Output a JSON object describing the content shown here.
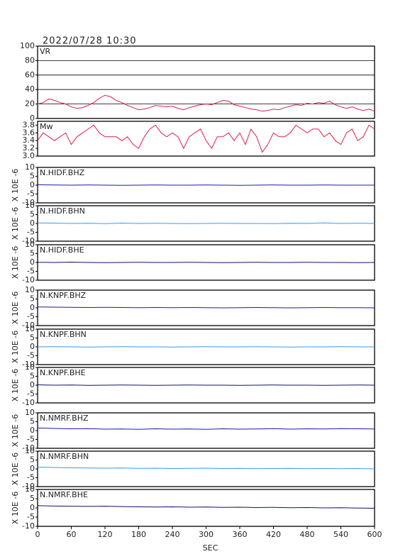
{
  "header": {
    "title": "2022/07/28 10:30"
  },
  "chart_data": [
    {
      "type": "line",
      "xlim": [
        0,
        600
      ],
      "ylim": [
        0,
        100
      ],
      "yticks": [
        0,
        20,
        40,
        60,
        80,
        100
      ],
      "grid": true,
      "x": [
        0,
        10,
        20,
        30,
        40,
        50,
        60,
        70,
        80,
        90,
        100,
        110,
        120,
        130,
        140,
        150,
        160,
        170,
        180,
        190,
        200,
        210,
        220,
        230,
        240,
        250,
        260,
        270,
        280,
        290,
        300,
        310,
        320,
        330,
        340,
        350,
        360,
        370,
        380,
        390,
        400,
        410,
        420,
        430,
        440,
        450,
        460,
        470,
        480,
        490,
        500,
        510,
        520,
        530,
        540,
        550,
        560,
        570,
        580,
        590,
        600
      ],
      "series": [
        {
          "name": "VR",
          "color": "#e0204a",
          "values": [
            20,
            22,
            27,
            25,
            22,
            20,
            16,
            14,
            15,
            18,
            22,
            28,
            32,
            30,
            25,
            22,
            18,
            15,
            12,
            13,
            15,
            18,
            17,
            16,
            17,
            14,
            12,
            15,
            17,
            19,
            20,
            19,
            22,
            25,
            24,
            19,
            17,
            15,
            13,
            12,
            10,
            11,
            13,
            12,
            15,
            17,
            19,
            18,
            21,
            20,
            22,
            21,
            24,
            19,
            16,
            14,
            16,
            13,
            11,
            13,
            10
          ]
        }
      ]
    },
    {
      "type": "line",
      "xlim": [
        0,
        600
      ],
      "ylim": [
        3.0,
        3.9
      ],
      "yticks": [
        {
          "value": 3,
          "label": "3.0"
        },
        3.2,
        3.4,
        3.6,
        3.8
      ],
      "grid": false,
      "x": [
        0,
        10,
        20,
        30,
        40,
        50,
        60,
        70,
        80,
        90,
        100,
        110,
        120,
        130,
        140,
        150,
        160,
        170,
        180,
        190,
        200,
        210,
        220,
        230,
        240,
        250,
        260,
        270,
        280,
        290,
        300,
        310,
        320,
        330,
        340,
        350,
        360,
        370,
        380,
        390,
        400,
        410,
        420,
        430,
        440,
        450,
        460,
        470,
        480,
        490,
        500,
        510,
        520,
        530,
        540,
        550,
        560,
        570,
        580,
        590,
        600
      ],
      "series": [
        {
          "name": "Mw",
          "color": "#e0204a",
          "values": [
            3.4,
            3.6,
            3.5,
            3.4,
            3.5,
            3.6,
            3.3,
            3.5,
            3.6,
            3.7,
            3.8,
            3.6,
            3.5,
            3.5,
            3.5,
            3.4,
            3.5,
            3.3,
            3.2,
            3.5,
            3.7,
            3.8,
            3.6,
            3.5,
            3.6,
            3.5,
            3.2,
            3.5,
            3.6,
            3.7,
            3.4,
            3.2,
            3.5,
            3.5,
            3.6,
            3.4,
            3.6,
            3.3,
            3.7,
            3.5,
            3.1,
            3.3,
            3.6,
            3.5,
            3.5,
            3.6,
            3.8,
            3.7,
            3.6,
            3.7,
            3.7,
            3.5,
            3.6,
            3.4,
            3.3,
            3.6,
            3.7,
            3.4,
            3.5,
            3.8,
            3.7
          ]
        }
      ]
    },
    {
      "type": "line",
      "ylabel": "X 10E -6",
      "xlim": [
        0,
        600
      ],
      "ylim": [
        -10,
        10
      ],
      "yticks": [
        -10,
        -5,
        0,
        5,
        10
      ],
      "x": [
        0,
        30,
        60,
        90,
        120,
        150,
        180,
        210,
        240,
        270,
        300,
        330,
        360,
        390,
        420,
        450,
        480,
        510,
        540,
        570,
        600
      ],
      "series": [
        {
          "name": "N.HIDF.BHZ",
          "color": "#1a1ab0",
          "values": [
            0.2,
            0.1,
            0,
            0.1,
            0,
            -0.1,
            0,
            0.1,
            0,
            0,
            0.1,
            0,
            -0.1,
            0,
            0.1,
            0,
            0,
            0.1,
            0,
            0,
            0
          ]
        }
      ]
    },
    {
      "type": "line",
      "ylabel": "X 10E -6",
      "xlim": [
        0,
        600
      ],
      "ylim": [
        -10,
        10
      ],
      "yticks": [
        -10,
        -5,
        0,
        5,
        10
      ],
      "x": [
        0,
        30,
        60,
        90,
        120,
        150,
        180,
        210,
        240,
        270,
        300,
        330,
        360,
        390,
        420,
        450,
        480,
        510,
        540,
        570,
        600
      ],
      "series": [
        {
          "name": "N.HIDF.BHN",
          "color": "#3a9ae8",
          "values": [
            0.3,
            0.2,
            0,
            0.1,
            -0.1,
            0.2,
            0,
            0.1,
            0,
            -0.1,
            0,
            0.1,
            0,
            0,
            -0.1,
            0.1,
            0,
            0.3,
            0,
            0.1,
            0
          ]
        }
      ]
    },
    {
      "type": "line",
      "ylabel": "X 10E -6",
      "xlim": [
        0,
        600
      ],
      "ylim": [
        -10,
        10
      ],
      "yticks": [
        -10,
        -5,
        0,
        5,
        10
      ],
      "x": [
        0,
        30,
        60,
        90,
        120,
        150,
        180,
        210,
        240,
        270,
        300,
        330,
        360,
        390,
        420,
        450,
        480,
        510,
        540,
        570,
        600
      ],
      "series": [
        {
          "name": "N.HIDF.BHE",
          "color": "#101070",
          "values": [
            0.1,
            0,
            0.2,
            0,
            -0.1,
            0,
            0.1,
            0,
            0,
            0.1,
            0,
            -0.1,
            0,
            0.1,
            0,
            0,
            0.1,
            0,
            0,
            -0.1,
            0
          ]
        }
      ]
    },
    {
      "type": "line",
      "ylabel": "X 10E -6",
      "xlim": [
        0,
        600
      ],
      "ylim": [
        -10,
        10
      ],
      "yticks": [
        -10,
        -5,
        0,
        5,
        10
      ],
      "x": [
        0,
        30,
        60,
        90,
        120,
        150,
        180,
        210,
        240,
        270,
        300,
        330,
        360,
        390,
        420,
        450,
        480,
        510,
        540,
        570,
        600
      ],
      "series": [
        {
          "name": "N.KNPF.BHZ",
          "color": "#1a1ab0",
          "values": [
            0.5,
            0.4,
            0.3,
            0.2,
            0.3,
            0.2,
            0.1,
            0.2,
            0.1,
            0.2,
            0.1,
            0,
            0.1,
            0.2,
            0.1,
            0,
            0.1,
            0.2,
            0.1,
            0.1,
            0
          ]
        }
      ]
    },
    {
      "type": "line",
      "ylabel": "X 10E -6",
      "xlim": [
        0,
        600
      ],
      "ylim": [
        -10,
        10
      ],
      "yticks": [
        -10,
        -5,
        0,
        5,
        10
      ],
      "x": [
        0,
        30,
        60,
        90,
        120,
        150,
        180,
        210,
        240,
        270,
        300,
        330,
        360,
        390,
        420,
        450,
        480,
        510,
        540,
        570,
        600
      ],
      "series": [
        {
          "name": "N.KNPF.BHN",
          "color": "#3a9ae8",
          "values": [
            0,
            0.1,
            0,
            -0.1,
            0,
            0.1,
            0,
            0,
            -0.1,
            0,
            0.1,
            0,
            0,
            0.1,
            0,
            -0.1,
            0,
            0,
            0.1,
            0,
            0
          ]
        }
      ]
    },
    {
      "type": "line",
      "ylabel": "X 10E -6",
      "xlim": [
        0,
        600
      ],
      "ylim": [
        -10,
        10
      ],
      "yticks": [
        -10,
        -5,
        0,
        5,
        10
      ],
      "x": [
        0,
        30,
        60,
        90,
        120,
        150,
        180,
        210,
        240,
        270,
        300,
        330,
        360,
        390,
        420,
        450,
        480,
        510,
        540,
        570,
        600
      ],
      "series": [
        {
          "name": "N.KNPF.BHE",
          "color": "#101070",
          "values": [
            0.2,
            0,
            0.1,
            -0.1,
            0,
            0.1,
            0,
            -0.1,
            0,
            0.1,
            0,
            0,
            -0.1,
            0,
            0.1,
            0,
            0,
            -0.1,
            0,
            0.1,
            0
          ]
        }
      ]
    },
    {
      "type": "line",
      "ylabel": "X 10E -6",
      "xlim": [
        0,
        600
      ],
      "ylim": [
        -10,
        10
      ],
      "yticks": [
        -10,
        -5,
        0,
        5,
        10
      ],
      "x": [
        0,
        30,
        60,
        90,
        120,
        150,
        180,
        210,
        240,
        270,
        300,
        330,
        360,
        390,
        420,
        450,
        480,
        510,
        540,
        570,
        600
      ],
      "series": [
        {
          "name": "N.NMRF.BHZ",
          "color": "#1a1ab0",
          "values": [
            1.5,
            1.2,
            1.0,
            1.1,
            0.8,
            0.9,
            0.7,
            1.0,
            0.8,
            0.9,
            0.7,
            1.0,
            0.8,
            0.9,
            1.1,
            0.8,
            1.0,
            0.9,
            1.1,
            1.0,
            0.9
          ]
        }
      ]
    },
    {
      "type": "line",
      "ylabel": "X 10E -6",
      "xlim": [
        0,
        600
      ],
      "ylim": [
        -10,
        10
      ],
      "yticks": [
        -10,
        -5,
        0,
        5,
        10
      ],
      "x": [
        0,
        30,
        60,
        90,
        120,
        150,
        180,
        210,
        240,
        270,
        300,
        330,
        360,
        390,
        420,
        450,
        480,
        510,
        540,
        570,
        600
      ],
      "series": [
        {
          "name": "N.NMRF.BHN",
          "color": "#3a9ae8",
          "values": [
            1.0,
            0.8,
            0.6,
            0.5,
            0.4,
            0.5,
            0.3,
            0.4,
            0.2,
            0.3,
            0.4,
            0.2,
            0.3,
            0.1,
            0.2,
            0.3,
            0.1,
            0.2,
            0.1,
            0.2,
            0
          ]
        }
      ]
    },
    {
      "type": "line",
      "ylabel": "X 10E -6",
      "xlabel": "SEC",
      "xlim": [
        0,
        600
      ],
      "ylim": [
        -10,
        10
      ],
      "yticks": [
        -10,
        -5,
        0,
        5,
        10
      ],
      "xticks": [
        0,
        60,
        120,
        180,
        240,
        300,
        360,
        420,
        480,
        540,
        600
      ],
      "x": [
        0,
        30,
        60,
        90,
        120,
        150,
        180,
        210,
        240,
        270,
        300,
        330,
        360,
        390,
        420,
        450,
        480,
        510,
        540,
        570,
        600
      ],
      "series": [
        {
          "name": "N.NMRF.BHE",
          "color": "#101070",
          "values": [
            1.2,
            1.0,
            0.9,
            0.8,
            0.9,
            0.7,
            0.6,
            0.5,
            0.6,
            0.4,
            0.5,
            0.3,
            0.4,
            0.2,
            0.3,
            0.1,
            0.2,
            0,
            0.1,
            -0.1,
            -0.2
          ]
        }
      ]
    }
  ]
}
